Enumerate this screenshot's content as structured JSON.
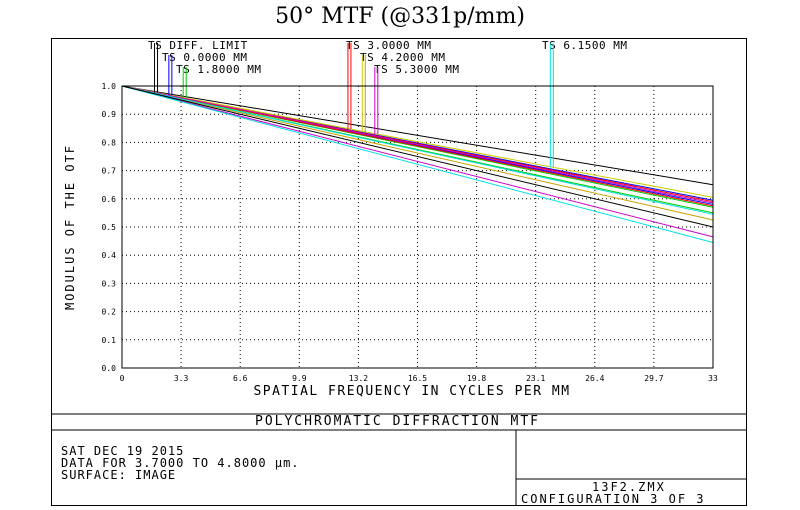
{
  "title": "50° MTF (@331p/mm)",
  "chart_data": {
    "type": "line",
    "xlabel": "SPATIAL FREQUENCY IN CYCLES PER MM",
    "ylabel": "MODULUS OF THE OTF",
    "xlim": [
      0,
      33
    ],
    "ylim": [
      0,
      1
    ],
    "x_ticks": [
      "0",
      "3.3",
      "6.6",
      "9.9",
      "13.2",
      "16.5",
      "19.8",
      "23.1",
      "26.4",
      "29.7",
      "33"
    ],
    "y_ticks": [
      "0.0",
      "0.1",
      "0.2",
      "0.3",
      "0.4",
      "0.5",
      "0.6",
      "0.7",
      "0.8",
      "0.9",
      "1.0"
    ],
    "grid": true,
    "legend": [
      {
        "label": "TS DIFF. LIMIT",
        "colors": [
          "#000000",
          "#000000"
        ],
        "x": 1.9
      },
      {
        "label": "TS 0.0000 MM",
        "colors": [
          "#0000ff",
          "#0000ff"
        ],
        "x": 2.7
      },
      {
        "label": "TS 1.8000 MM",
        "colors": [
          "#00cc00",
          "#00cc00"
        ],
        "x": 3.5
      },
      {
        "label": "TS 3.0000 MM",
        "colors": [
          "#ff0000",
          "#ff0000"
        ],
        "x": 12.7
      },
      {
        "label": "TS 4.2000 MM",
        "colors": [
          "#cccc00",
          "#c8a000"
        ],
        "x": 13.5
      },
      {
        "label": "TS 5.3000 MM",
        "colors": [
          "#cc00cc",
          "#cc00cc"
        ],
        "x": 14.2
      },
      {
        "label": "TS 6.1500 MM",
        "colors": [
          "#00e0e0",
          "#00e0e0"
        ],
        "x": 24.0
      }
    ],
    "series": [
      {
        "name": "TS DIFF. LIMIT",
        "color": "#000000",
        "x": [
          0,
          33
        ],
        "y": [
          1.0,
          0.65
        ]
      },
      {
        "name": "TS 0.0000 MM",
        "color": "#0000ff",
        "x": [
          0,
          33
        ],
        "y": [
          1.0,
          0.595
        ]
      },
      {
        "name": "TS 0.0000 MM",
        "color": "#0000ff",
        "x": [
          0,
          33
        ],
        "y": [
          1.0,
          0.58
        ]
      },
      {
        "name": "TS 1.8000 MM",
        "color": "#00cc00",
        "x": [
          0,
          33
        ],
        "y": [
          1.0,
          0.57
        ]
      },
      {
        "name": "TS 1.8000 MM",
        "color": "#00cc00",
        "x": [
          0,
          33
        ],
        "y": [
          1.0,
          0.55
        ]
      },
      {
        "name": "TS 3.0000 MM",
        "color": "#ff0000",
        "x": [
          0,
          33
        ],
        "y": [
          1.0,
          0.59
        ]
      },
      {
        "name": "TS 3.0000 MM",
        "color": "#ff0000",
        "x": [
          0,
          33
        ],
        "y": [
          1.0,
          0.575
        ]
      },
      {
        "name": "TS 4.2000 MM",
        "color": "#cccc00",
        "x": [
          0,
          33
        ],
        "y": [
          1.0,
          0.605
        ]
      },
      {
        "name": "TS 4.2000 MM",
        "color": "#c8a000",
        "x": [
          0,
          33
        ],
        "y": [
          1.0,
          0.525
        ]
      },
      {
        "name": "TS 5.3000 MM",
        "color": "#cc00cc",
        "x": [
          0,
          33
        ],
        "y": [
          1.0,
          0.585
        ]
      },
      {
        "name": "TS 5.3000 MM",
        "color": "#cc00cc",
        "x": [
          0,
          33
        ],
        "y": [
          1.0,
          0.465
        ]
      },
      {
        "name": "TS 6.1500 MM",
        "color": "#00e0e0",
        "x": [
          0,
          33
        ],
        "y": [
          1.0,
          0.545
        ]
      },
      {
        "name": "TS 6.1500 MM",
        "color": "#00e0e0",
        "x": [
          0,
          33
        ],
        "y": [
          1.0,
          0.445
        ]
      },
      {
        "name": "",
        "color": "#000000",
        "x": [
          0,
          33
        ],
        "y": [
          1.0,
          0.5
        ]
      }
    ]
  },
  "footer": {
    "caption": "POLYCHROMATIC DIFFRACTION MTF",
    "info_lines": [
      "SAT DEC 19 2015",
      "DATA FOR 3.7000 TO 4.8000 µm.",
      "SURFACE: IMAGE"
    ],
    "file_name": "13F2.ZMX",
    "configuration": "CONFIGURATION 3 OF 3"
  }
}
